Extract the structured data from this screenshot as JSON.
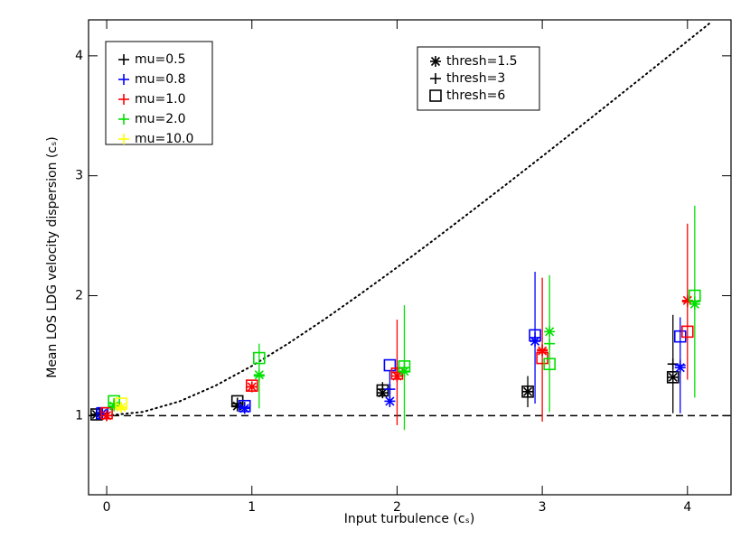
{
  "chart_data": {
    "type": "scatter",
    "xlabel": "Input turbulence (cₛ)",
    "ylabel": "Mean LOS LDG velocity dispersion (cₛ)",
    "xlim": [
      -0.125,
      4.3
    ],
    "ylim": [
      0.34,
      4.3
    ],
    "xticks": [
      0,
      1,
      2,
      3,
      4
    ],
    "yticks": [
      1,
      2,
      3,
      4
    ],
    "hline": 1,
    "curve": {
      "x": [
        0,
        0.25,
        0.5,
        0.75,
        1,
        1.25,
        1.5,
        1.75,
        2,
        2.25,
        2.5,
        2.75,
        3,
        3.25,
        3.5,
        3.75,
        4,
        4.15
      ],
      "values": [
        1,
        1.031,
        1.118,
        1.25,
        1.414,
        1.601,
        1.803,
        2.016,
        2.236,
        2.462,
        2.693,
        2.926,
        3.162,
        3.4,
        3.64,
        3.881,
        4.123,
        4.269
      ]
    },
    "color_legend": [
      {
        "name": "mu=0.5",
        "color": "#000000"
      },
      {
        "name": "mu=0.8",
        "color": "#0000ff"
      },
      {
        "name": "mu=1.0",
        "color": "#ff0000"
      },
      {
        "name": "mu=2.0",
        "color": "#00e000"
      },
      {
        "name": "mu=10.0",
        "color": "#ffff00"
      }
    ],
    "marker_legend": [
      {
        "name": "thresh=1.5",
        "marker": "asterisk"
      },
      {
        "name": "thresh=3",
        "marker": "plus"
      },
      {
        "name": "thresh=6",
        "marker": "square"
      }
    ],
    "series": [
      {
        "color": 0,
        "marker": "asterisk",
        "x": [
          -0.07,
          0.9,
          1.9,
          2.9,
          3.9
        ],
        "values": [
          1.01,
          1.08,
          1.19,
          1.2,
          1.32
        ]
      },
      {
        "color": 0,
        "marker": "plus",
        "x": [
          -0.07,
          0.9,
          1.9,
          2.9,
          3.9
        ],
        "values": [
          1.01,
          1.1,
          1.22,
          1.2,
          1.43
        ],
        "errors": [
          0.02,
          0.05,
          0.06,
          0.13,
          0.41
        ]
      },
      {
        "color": 0,
        "marker": "square",
        "x": [
          -0.07,
          0.9,
          1.9,
          2.9,
          3.9
        ],
        "values": [
          1.01,
          1.12,
          1.21,
          1.2,
          1.32
        ]
      },
      {
        "color": 1,
        "marker": "asterisk",
        "x": [
          -0.03,
          0.95,
          1.95,
          2.95,
          3.95
        ],
        "values": [
          1.02,
          1.06,
          1.12,
          1.62,
          1.4
        ]
      },
      {
        "color": 1,
        "marker": "plus",
        "x": [
          -0.03,
          0.95,
          1.95,
          2.95,
          3.95
        ],
        "values": [
          1.02,
          1.07,
          1.22,
          1.65,
          1.42
        ],
        "errors": [
          0.02,
          0.04,
          0.15,
          0.55,
          0.4
        ]
      },
      {
        "color": 1,
        "marker": "square",
        "x": [
          -0.03,
          0.95,
          1.95,
          2.95,
          3.95
        ],
        "values": [
          1.02,
          1.08,
          1.42,
          1.67,
          1.66
        ]
      },
      {
        "color": 2,
        "marker": "asterisk",
        "x": [
          0,
          1,
          2,
          3,
          4
        ],
        "values": [
          1.0,
          1.24,
          1.33,
          1.54,
          1.96
        ]
      },
      {
        "color": 2,
        "marker": "plus",
        "x": [
          0,
          1,
          2,
          3,
          4
        ],
        "values": [
          1.0,
          1.24,
          1.36,
          1.55,
          1.95
        ],
        "errors": [
          0.02,
          0.04,
          0.44,
          0.6,
          0.65
        ]
      },
      {
        "color": 2,
        "marker": "square",
        "x": [
          0,
          1,
          2,
          3,
          4
        ],
        "values": [
          1.02,
          1.25,
          1.35,
          1.48,
          1.7
        ]
      },
      {
        "color": 3,
        "marker": "asterisk",
        "x": [
          0.05,
          1.05,
          2.05,
          3.05,
          4.05
        ],
        "values": [
          1.08,
          1.34,
          1.37,
          1.7,
          1.93
        ]
      },
      {
        "color": 3,
        "marker": "plus",
        "x": [
          0.05,
          1.05,
          2.05,
          3.05,
          4.05
        ],
        "values": [
          1.1,
          1.33,
          1.4,
          1.6,
          1.95
        ],
        "errors": [
          0.03,
          0.27,
          0.52,
          0.57,
          0.8
        ]
      },
      {
        "color": 3,
        "marker": "square",
        "x": [
          0.05,
          1.05,
          2.05,
          3.05,
          4.05
        ],
        "values": [
          1.12,
          1.48,
          1.41,
          1.43,
          2.0
        ]
      },
      {
        "color": 4,
        "marker": "asterisk",
        "x": [
          0.1
        ],
        "values": [
          1.07
        ]
      },
      {
        "color": 4,
        "marker": "plus",
        "x": [
          0.1
        ],
        "values": [
          1.07
        ]
      },
      {
        "color": 4,
        "marker": "square",
        "x": [
          0.1
        ],
        "values": [
          1.1
        ]
      }
    ]
  }
}
